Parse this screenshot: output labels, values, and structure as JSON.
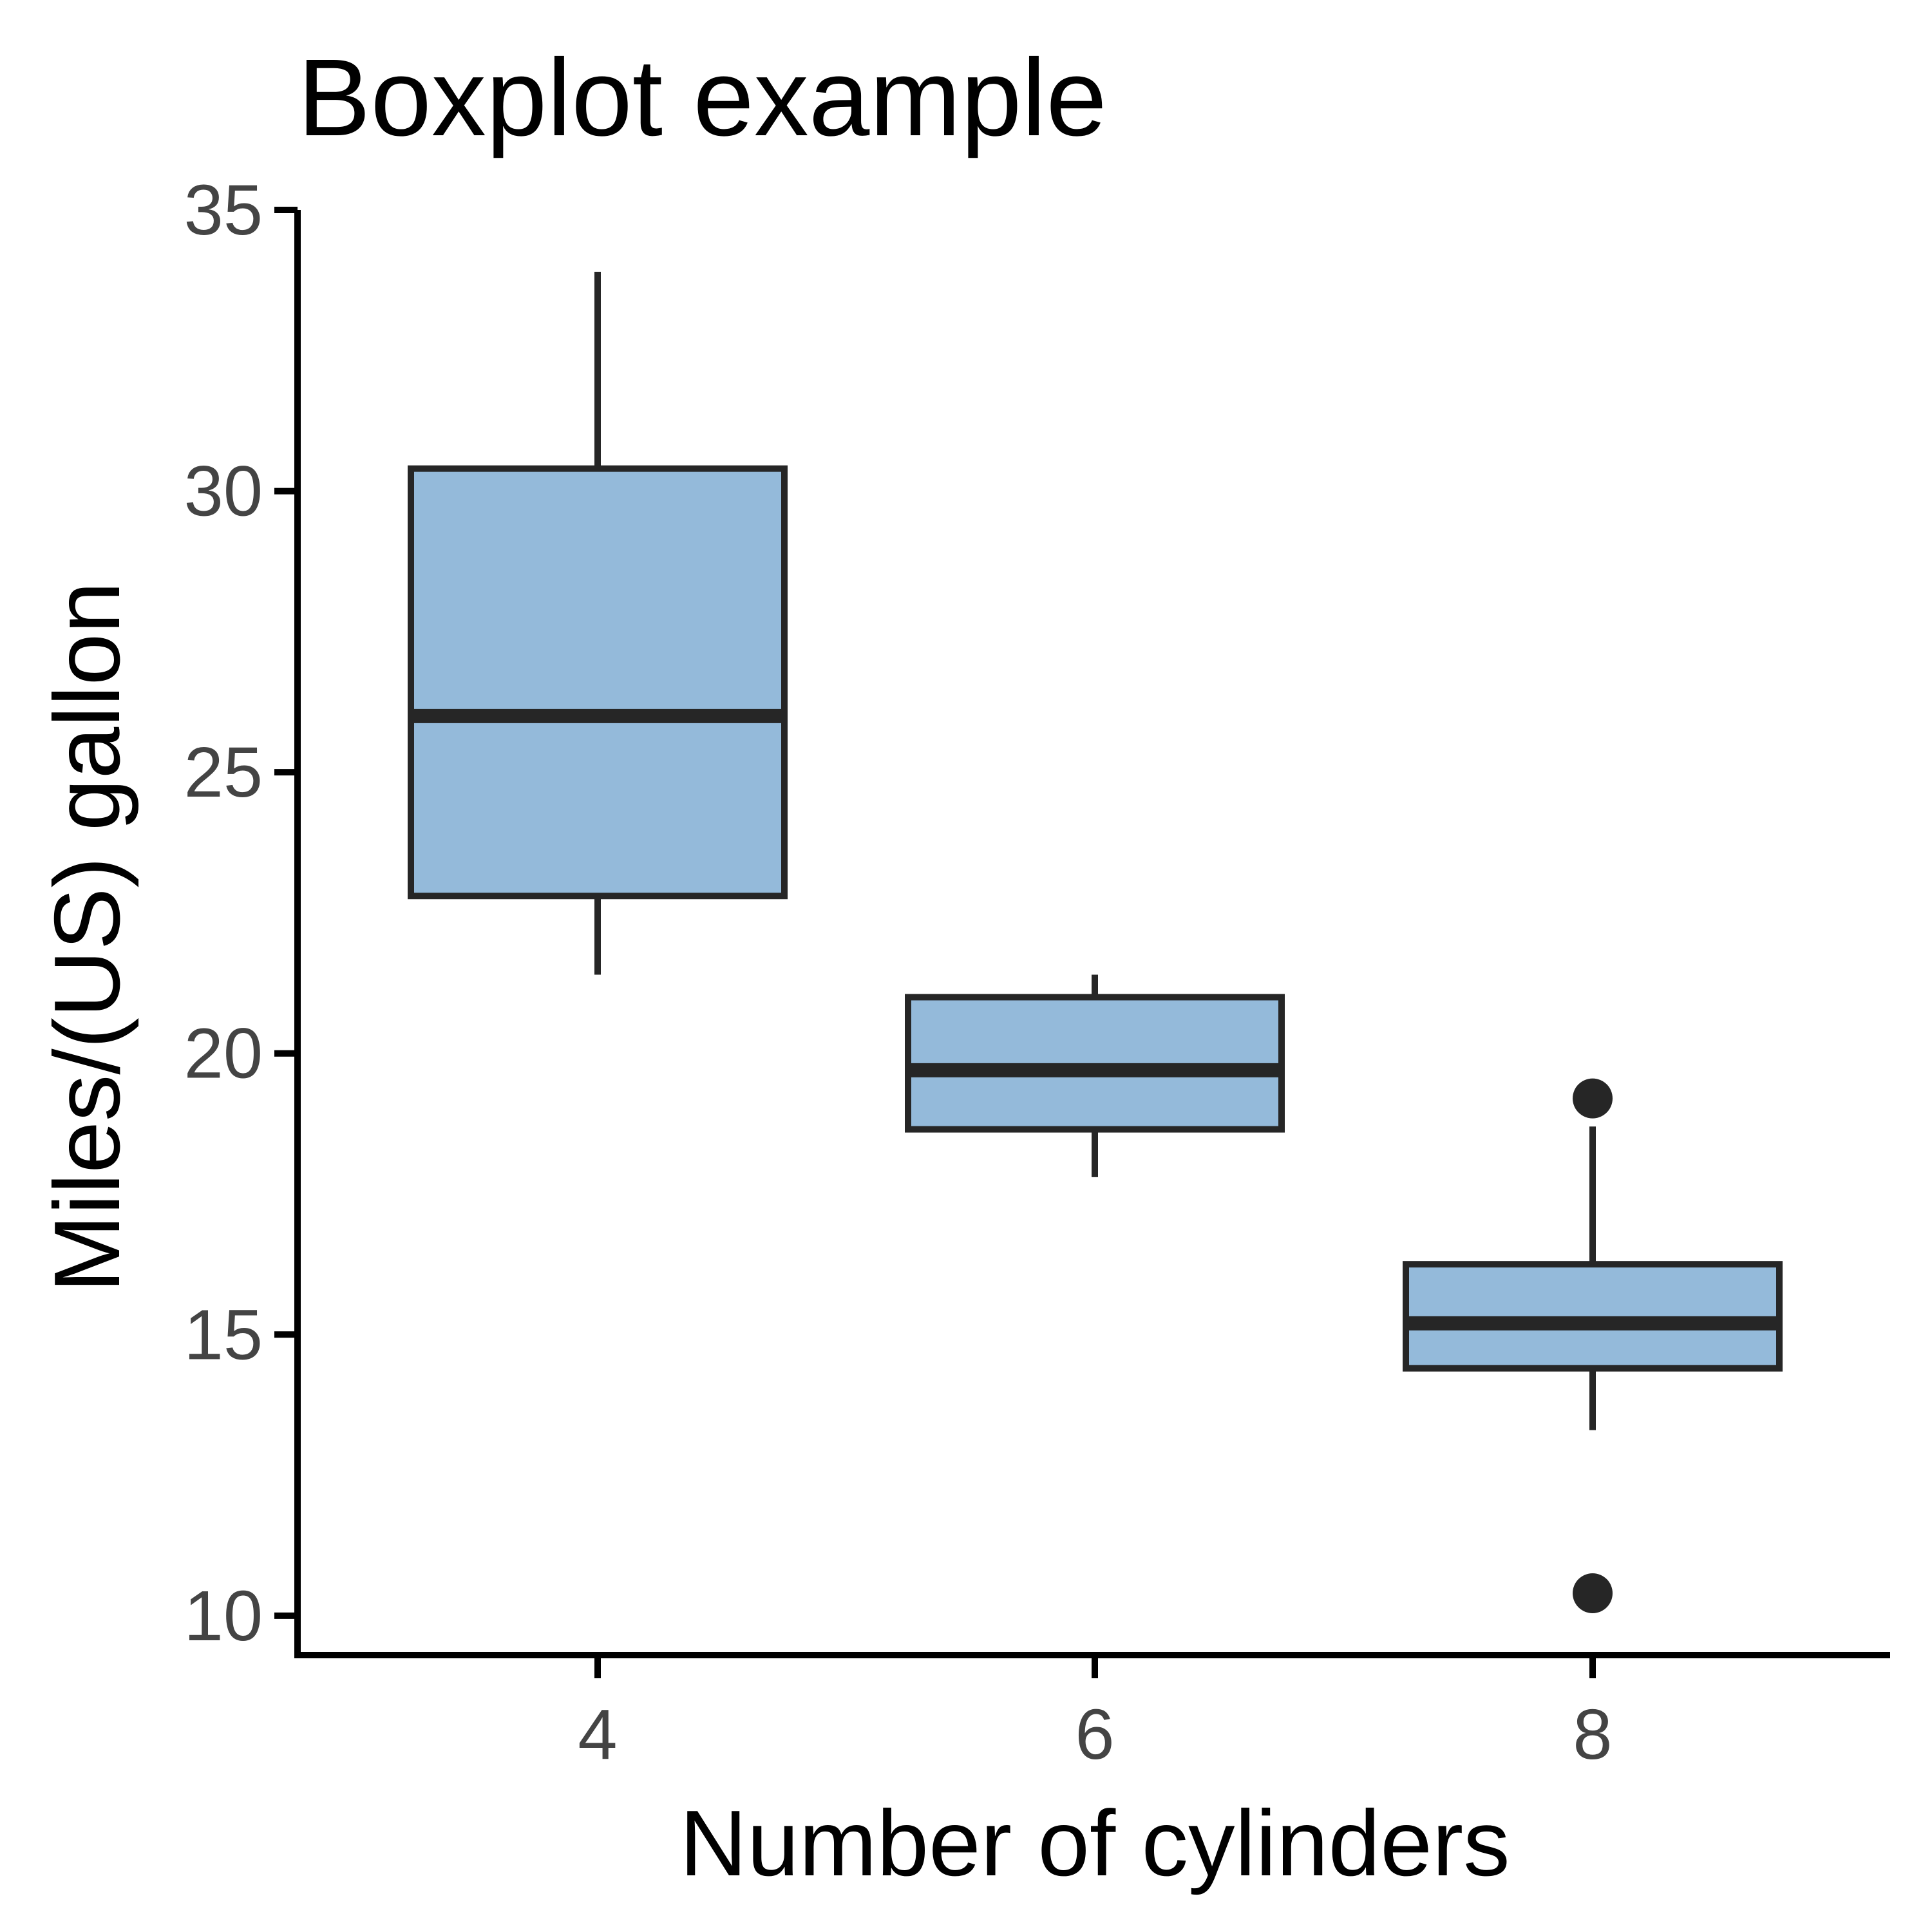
{
  "chart_data": {
    "type": "boxplot",
    "title": "Boxplot example",
    "xlabel": "Number of cylinders",
    "ylabel": "Miles/(US) gallon",
    "categories": [
      "4",
      "6",
      "8"
    ],
    "ylim": [
      9.3,
      35.0
    ],
    "yticks": [
      10,
      15,
      20,
      25,
      30,
      35
    ],
    "grid": false,
    "legend": "none",
    "boxes": [
      {
        "category": "4",
        "whisker_low": 21.4,
        "q1": 22.8,
        "median": 26.0,
        "q3": 30.4,
        "whisker_high": 33.9,
        "outliers": []
      },
      {
        "category": "6",
        "whisker_low": 17.8,
        "q1": 18.65,
        "median": 19.7,
        "q3": 21.0,
        "whisker_high": 21.4,
        "outliers": []
      },
      {
        "category": "8",
        "whisker_low": 13.3,
        "q1": 14.4,
        "median": 15.2,
        "q3": 16.25,
        "whisker_high": 18.7,
        "outliers": [
          19.2,
          10.4
        ]
      }
    ],
    "colors": {
      "box_fill": "#94BADA",
      "box_stroke": "#262626",
      "axis": "#000000",
      "tick_text": "#444444"
    }
  }
}
